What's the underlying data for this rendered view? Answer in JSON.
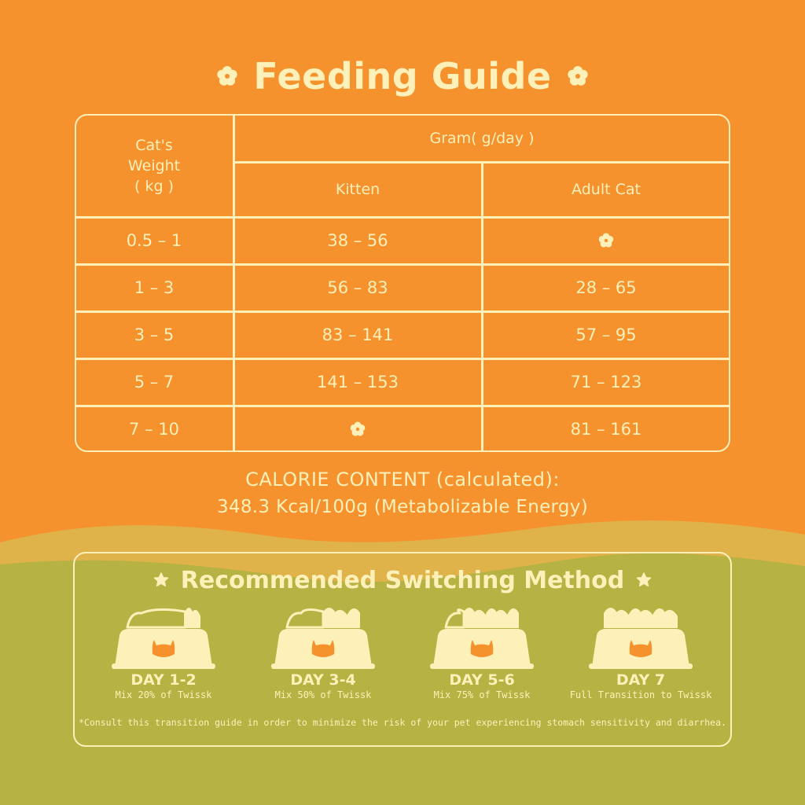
{
  "colors": {
    "orange": "#f5922e",
    "wave_yellow": "#e0b34a",
    "olive": "#b7b244",
    "cream": "#fdf0b8",
    "cat_orange": "#f5922e"
  },
  "title": "Feeding Guide",
  "title_icon": "flower-icon",
  "table": {
    "col_weight_header": [
      "Cat's",
      "Weight",
      "( kg )"
    ],
    "group_header": "Gram( g/day )",
    "col_kitten_header": "Kitten",
    "col_adult_header": "Adult Cat",
    "empty_icon": "flower-icon",
    "rows": [
      {
        "weight": "0.5 – 1",
        "kitten": "38 – 56",
        "adult": ""
      },
      {
        "weight": "1 – 3",
        "kitten": "56 – 83",
        "adult": "28 – 65"
      },
      {
        "weight": "3 – 5",
        "kitten": "83 – 141",
        "adult": "57 – 95"
      },
      {
        "weight": "5 – 7",
        "kitten": "141 – 153",
        "adult": "71 – 123"
      },
      {
        "weight": "7 – 10",
        "kitten": "",
        "adult": "81 – 161"
      }
    ]
  },
  "calorie": {
    "line1": "CALORIE CONTENT (calculated):",
    "line2": "348.3 Kcal/100g (Metabolizable Energy)"
  },
  "switching": {
    "title": "Recommended Switching Method",
    "title_icon": "star-icon",
    "steps": [
      {
        "day": "DAY 1-2",
        "mix": "Mix 20% of Twissk",
        "new_share": 0.2,
        "icon": "food-bowl-icon"
      },
      {
        "day": "DAY 3-4",
        "mix": "Mix 50% of Twissk",
        "new_share": 0.5,
        "icon": "food-bowl-icon"
      },
      {
        "day": "DAY 5-6",
        "mix": "Mix 75% of Twissk",
        "new_share": 0.75,
        "icon": "food-bowl-icon"
      },
      {
        "day": "DAY 7",
        "mix": "Full Transition to Twissk",
        "new_share": 1.0,
        "icon": "food-bowl-icon"
      }
    ],
    "note": "*Consult this transition guide in order to minimize the risk of your pet experiencing stomach sensitivity and diarrhea."
  }
}
